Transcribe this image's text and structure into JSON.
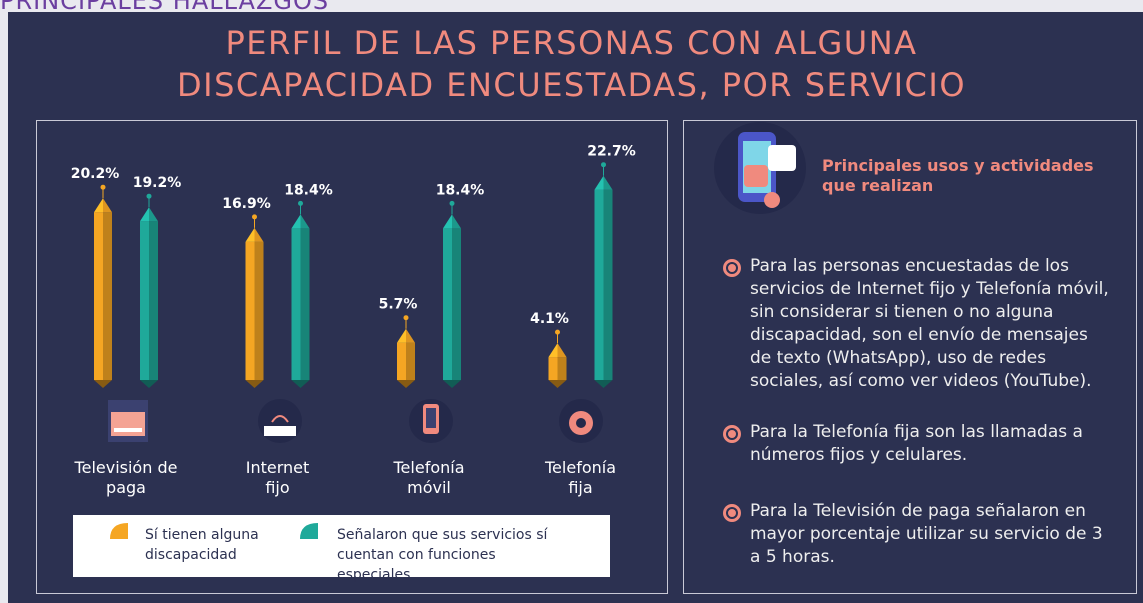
{
  "header": {
    "section": "PRINCIPALES HALLAZGOS"
  },
  "chart_data": {
    "type": "bar",
    "title": "PERFIL DE LAS PERSONAS CON ALGUNA\nDISCAPACIDAD ENCUESTADAS, POR SERVICIO",
    "categories": [
      "Televisión de paga",
      "Internet fijo",
      "Telefonía móvil",
      "Telefonía fija"
    ],
    "series": [
      {
        "name": "Sí tienen alguna discapacidad",
        "color": "#f5a623",
        "values": [
          20.2,
          16.9,
          5.7,
          4.1
        ],
        "value_labels": [
          "20.2%",
          "16.9%",
          "5.7%",
          "4.1%"
        ]
      },
      {
        "name": "Señalaron que sus servicios sí cuentan con funciones especiales",
        "color": "#1fa99a",
        "values": [
          19.2,
          18.4,
          18.4,
          22.7
        ],
        "value_labels": [
          "19.2%",
          "18.4%",
          "18.4%",
          "22.7%"
        ]
      }
    ],
    "ylim": [
      0,
      25
    ]
  },
  "side": {
    "heading": "Principales usos y actividades que realizan",
    "bullets": [
      "Para las personas encuestadas de los servicios de Internet fijo y Telefonía móvil, sin considerar si tienen o no alguna discapacidad, son el envío de mensajes de texto (WhatsApp), uso de redes sociales, así como ver videos (YouTube).",
      "Para la Telefonía fija son las llamadas a números fijos y celulares.",
      "Para la Televisión de paga señalaron en mayor porcentaje utilizar su servicio de 3 a 5 horas."
    ]
  }
}
